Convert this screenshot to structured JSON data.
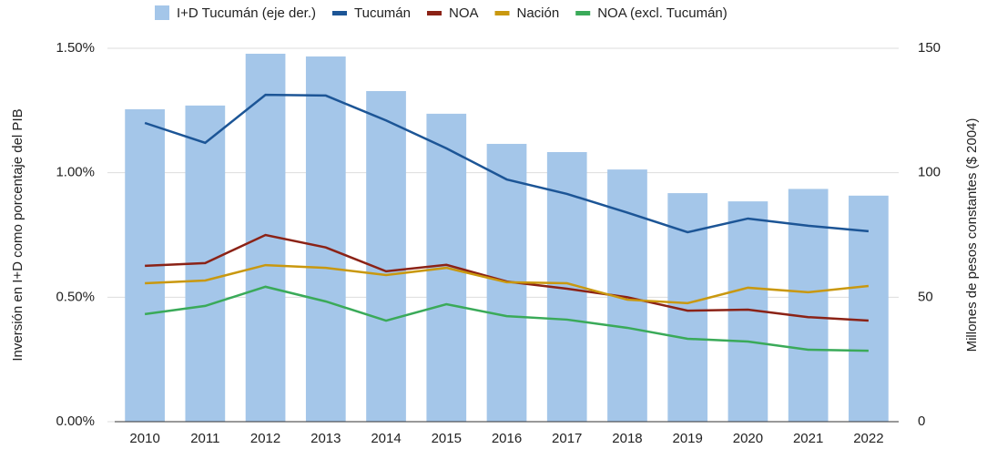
{
  "chart_data": {
    "type": "bar_line",
    "ylabel": "Inversión en I+D como porcentaje del PIB",
    "y2label": "Millones de pesos constantes ($ 2004)",
    "categories": [
      "2010",
      "2011",
      "2012",
      "2013",
      "2014",
      "2015",
      "2016",
      "2017",
      "2018",
      "2019",
      "2020",
      "2021",
      "2022"
    ],
    "ylim": [
      0,
      1.5
    ],
    "yticks": [
      {
        "value": 0,
        "label": "0.00%"
      },
      {
        "value": 0.5,
        "label": "0.50%"
      },
      {
        "value": 1,
        "label": "1.00%"
      },
      {
        "value": 1.5,
        "label": "1.50%"
      }
    ],
    "y2lim": [
      0,
      150
    ],
    "y2ticks": [
      0,
      50,
      100,
      150
    ],
    "grid": true,
    "legend": "top",
    "series": [
      {
        "name": "I+D Tucumán (eje der.)",
        "type": "bar",
        "axis": "y2",
        "color": "#a4c6e9",
        "values": [
          125.5,
          127,
          147.8,
          146.7,
          132.8,
          123.7,
          111.6,
          108.3,
          101.3,
          91.8,
          88.5,
          93.5,
          90.8
        ]
      },
      {
        "name": "Tucumán",
        "type": "line",
        "color": "#1c5596",
        "values": [
          1.2,
          1.12,
          1.313,
          1.31,
          1.21,
          1.098,
          0.973,
          0.915,
          0.84,
          0.761,
          0.816,
          0.787,
          0.765
        ]
      },
      {
        "name": "NOA",
        "type": "line",
        "color": "#8b2216",
        "values": [
          0.626,
          0.637,
          0.75,
          0.7,
          0.604,
          0.63,
          0.563,
          0.534,
          0.5,
          0.446,
          0.45,
          0.42,
          0.406
        ]
      },
      {
        "name": "Nación",
        "type": "line",
        "color": "#c9980f",
        "values": [
          0.556,
          0.567,
          0.629,
          0.618,
          0.589,
          0.618,
          0.56,
          0.556,
          0.49,
          0.476,
          0.538,
          0.52,
          0.545
        ]
      },
      {
        "name": "NOA (excl. Tucumán)",
        "type": "line",
        "color": "#3aaa59",
        "values": [
          0.432,
          0.465,
          0.542,
          0.483,
          0.406,
          0.472,
          0.424,
          0.41,
          0.377,
          0.333,
          0.322,
          0.289,
          0.285
        ]
      }
    ]
  }
}
